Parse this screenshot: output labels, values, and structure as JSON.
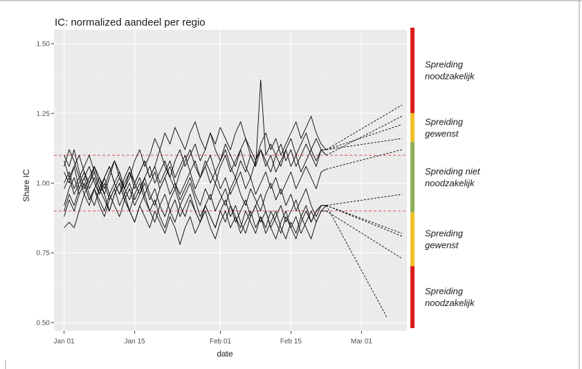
{
  "chart_data": {
    "type": "line",
    "title": "IC: normalized aandeel per regio",
    "xlabel": "date",
    "ylabel": "Share IC",
    "x_ticks": [
      "Jan 01",
      "Jan 15",
      "Feb 01",
      "Feb 15",
      "Mar 01"
    ],
    "y_ticks": [
      "0.50",
      "0.75",
      "1.00",
      "1.25",
      "1.50"
    ],
    "y_tick_values": [
      0.5,
      0.75,
      1.0,
      1.25,
      1.5
    ],
    "ylim": [
      0.47,
      1.55
    ],
    "xlim": [
      "2020-12-30",
      "2021-03-10"
    ],
    "reference_lines": [
      1.1,
      0.9
    ],
    "reference_line_color": "#e05050",
    "panel_background": "#ebebeb",
    "grid": true,
    "series_color": "#000000",
    "projection_style": "dashed",
    "observed_dates": {
      "start": "2021-01-01",
      "end": "2021-02-22"
    },
    "series": [
      {
        "observed": [
          1.1,
          1.06,
          1.12,
          1.04,
          0.98,
          1.02,
          1.06,
          1.0,
          0.96,
          1.02,
          1.08,
          1.04,
          0.98,
          1.02,
          1.08,
          1.12,
          1.06,
          1.1,
          1.16,
          1.12,
          1.18,
          1.14,
          1.2,
          1.16,
          1.12,
          1.18,
          1.22,
          1.16,
          1.12,
          1.18,
          1.14,
          1.2,
          1.16,
          1.12,
          1.18,
          1.22,
          1.16,
          1.12,
          1.08,
          1.14,
          1.18,
          1.12,
          1.16,
          1.1,
          1.14,
          1.18,
          1.22,
          1.16,
          1.2,
          1.24,
          1.18,
          1.14,
          1.12
        ],
        "projection": [
          1.12,
          1.28
        ]
      },
      {
        "observed": [
          1.06,
          1.12,
          1.08,
          1.02,
          1.06,
          1.1,
          1.04,
          0.98,
          1.02,
          1.06,
          1.0,
          0.96,
          1.02,
          1.06,
          1.0,
          1.04,
          1.08,
          1.02,
          1.06,
          1.12,
          1.06,
          1.02,
          1.08,
          1.12,
          1.06,
          1.1,
          1.14,
          1.08,
          1.12,
          1.18,
          1.12,
          1.08,
          1.14,
          1.1,
          1.06,
          1.12,
          1.16,
          1.1,
          1.06,
          1.37,
          1.1,
          1.14,
          1.1,
          1.06,
          1.12,
          1.16,
          1.1,
          1.14,
          1.18,
          1.12,
          1.08,
          1.12,
          1.1
        ],
        "projection": [
          1.1,
          1.24
        ]
      },
      {
        "observed": [
          1.0,
          1.04,
          0.98,
          1.02,
          0.96,
          1.0,
          1.04,
          0.98,
          1.02,
          0.96,
          1.0,
          1.04,
          0.98,
          0.94,
          1.0,
          1.04,
          1.08,
          1.02,
          1.06,
          1.0,
          1.04,
          1.08,
          1.02,
          1.06,
          1.1,
          1.04,
          1.08,
          1.02,
          1.06,
          1.1,
          1.04,
          1.08,
          1.12,
          1.06,
          1.02,
          1.08,
          1.04,
          1.1,
          1.06,
          1.12,
          1.08,
          1.04,
          1.1,
          1.14,
          1.08,
          1.12,
          1.06,
          1.1,
          1.14,
          1.1,
          1.06,
          1.12,
          1.1
        ],
        "projection": [
          1.12,
          1.21
        ]
      },
      {
        "observed": [
          1.08,
          1.02,
          1.06,
          1.1,
          1.04,
          1.0,
          1.06,
          1.02,
          0.98,
          1.04,
          1.08,
          1.02,
          0.98,
          1.04,
          1.0,
          0.96,
          1.02,
          1.06,
          1.0,
          1.04,
          1.08,
          1.02,
          0.98,
          1.04,
          1.08,
          1.12,
          1.06,
          1.02,
          1.08,
          1.04,
          1.0,
          1.06,
          1.1,
          1.04,
          1.08,
          1.12,
          1.06,
          1.02,
          1.08,
          1.12,
          1.06,
          1.1,
          1.04,
          1.08,
          1.12,
          1.06,
          1.1,
          1.04,
          1.08,
          1.12,
          1.16,
          1.12,
          1.12
        ],
        "projection": [
          1.12,
          1.16
        ]
      },
      {
        "observed": [
          1.04,
          1.0,
          1.06,
          0.98,
          1.02,
          1.06,
          1.0,
          0.96,
          1.02,
          1.06,
          1.0,
          0.96,
          1.0,
          1.04,
          0.98,
          1.02,
          0.96,
          1.0,
          1.04,
          0.98,
          1.02,
          1.06,
          1.0,
          0.96,
          1.0,
          1.04,
          0.98,
          1.02,
          1.06,
          1.0,
          1.04,
          0.98,
          1.02,
          0.96,
          1.0,
          1.04,
          0.98,
          1.02,
          0.96,
          1.0,
          1.04,
          0.98,
          1.02,
          0.96,
          1.0,
          1.04,
          0.98,
          1.02,
          1.06,
          1.02,
          0.98,
          1.04,
          1.05
        ],
        "projection": [
          1.05,
          1.12
        ]
      },
      {
        "observed": [
          0.98,
          1.02,
          0.96,
          1.0,
          1.04,
          0.98,
          1.02,
          0.96,
          1.0,
          0.94,
          0.98,
          1.02,
          0.96,
          1.0,
          0.94,
          0.98,
          1.02,
          0.96,
          0.92,
          0.98,
          1.02,
          0.96,
          1.0,
          0.94,
          0.98,
          1.02,
          0.96,
          0.92,
          0.98,
          0.94,
          1.0,
          0.96,
          0.92,
          0.98,
          1.02,
          0.96,
          0.92,
          0.98,
          0.94,
          0.9,
          0.96,
          1.0,
          0.94,
          0.98,
          0.92,
          0.96,
          0.9,
          0.94,
          0.98,
          0.92,
          0.88,
          0.92,
          0.92
        ],
        "projection": [
          0.92,
          0.96
        ]
      },
      {
        "observed": [
          0.92,
          0.98,
          1.02,
          0.96,
          1.0,
          0.94,
          0.98,
          1.02,
          0.96,
          0.9,
          0.96,
          1.0,
          0.94,
          0.98,
          0.92,
          0.96,
          1.0,
          0.94,
          0.98,
          0.92,
          0.88,
          0.94,
          0.98,
          0.92,
          0.96,
          1.0,
          0.94,
          0.88,
          0.92,
          0.96,
          0.9,
          0.94,
          0.98,
          0.92,
          0.86,
          0.9,
          0.94,
          0.88,
          0.92,
          0.96,
          0.9,
          0.84,
          0.88,
          0.92,
          0.86,
          0.9,
          0.94,
          0.88,
          0.92,
          0.86,
          0.9,
          0.92,
          0.92
        ],
        "projection": [
          0.92,
          0.82
        ]
      },
      {
        "observed": [
          0.88,
          0.94,
          0.9,
          0.96,
          1.0,
          0.94,
          0.98,
          0.92,
          0.88,
          0.94,
          0.98,
          0.92,
          0.96,
          0.9,
          0.86,
          0.92,
          0.96,
          0.9,
          0.94,
          0.88,
          0.84,
          0.9,
          0.94,
          0.88,
          0.92,
          0.96,
          0.9,
          0.86,
          0.92,
          0.88,
          0.84,
          0.9,
          0.94,
          0.88,
          0.92,
          0.86,
          0.82,
          0.88,
          0.92,
          0.86,
          0.9,
          0.84,
          0.8,
          0.86,
          0.9,
          0.84,
          0.88,
          0.82,
          0.86,
          0.9,
          0.86,
          0.9,
          0.92
        ],
        "projection": [
          0.92,
          0.81
        ]
      },
      {
        "observed": [
          0.84,
          0.86,
          0.84,
          0.9,
          0.96,
          0.92,
          0.98,
          0.94,
          0.9,
          0.96,
          0.92,
          0.88,
          0.94,
          0.9,
          0.86,
          0.92,
          0.88,
          0.84,
          0.9,
          0.86,
          0.82,
          0.88,
          0.84,
          0.78,
          0.84,
          0.88,
          0.82,
          0.86,
          0.9,
          0.84,
          0.8,
          0.86,
          0.9,
          0.84,
          0.88,
          0.82,
          0.86,
          0.9,
          0.84,
          0.88,
          0.82,
          0.86,
          0.9,
          0.84,
          0.8,
          0.86,
          0.82,
          0.88,
          0.84,
          0.8,
          0.86,
          0.9,
          0.9
        ],
        "projection": [
          0.9,
          0.73
        ]
      },
      {
        "observed": [
          0.9,
          0.96,
          0.92,
          0.98,
          1.02,
          0.96,
          0.92,
          0.98,
          0.94,
          0.9,
          0.96,
          1.0,
          0.94,
          0.9,
          0.96,
          1.0,
          0.94,
          0.9,
          0.86,
          0.92,
          0.96,
          0.9,
          0.86,
          0.92,
          0.88,
          0.94,
          0.9,
          0.86,
          0.92,
          0.88,
          0.84,
          0.9,
          0.86,
          0.92,
          0.88,
          0.84,
          0.9,
          0.86,
          0.82,
          0.88,
          0.84,
          0.9,
          0.86,
          0.82,
          0.88,
          0.84,
          0.8,
          0.86,
          0.9,
          0.86,
          0.9,
          0.92,
          0.92
        ],
        "projection": [
          0.92,
          0.52
        ]
      }
    ],
    "projection_end_dates": [
      "2021-03-09",
      "2021-03-09",
      "2021-03-09",
      "2021-03-09",
      "2021-03-09",
      "2021-03-09",
      "2021-03-09",
      "2021-03-09",
      "2021-03-09",
      "2021-03-06"
    ]
  },
  "zones": [
    {
      "text_line1": "Spreiding",
      "text_line2": "noodzakelijk",
      "color": "#dc1c1c",
      "y_from": 1.25,
      "y_to": 1.56
    },
    {
      "text_line1": "Spreiding",
      "text_line2": "gewenst",
      "color": "#f0c02a",
      "y_from": 1.145,
      "y_to": 1.25
    },
    {
      "text_line1": "Spreiding niet",
      "text_line2": "noodzakelijk",
      "color": "#8faf58",
      "y_from": 0.89,
      "y_to": 1.145
    },
    {
      "text_line1": "Spreiding",
      "text_line2": "gewenst",
      "color": "#f0c02a",
      "y_from": 0.695,
      "y_to": 0.89
    },
    {
      "text_line1": "Spreiding",
      "text_line2": "noodzakelijk",
      "color": "#dc1c1c",
      "y_from": 0.47,
      "y_to": 0.695
    }
  ]
}
